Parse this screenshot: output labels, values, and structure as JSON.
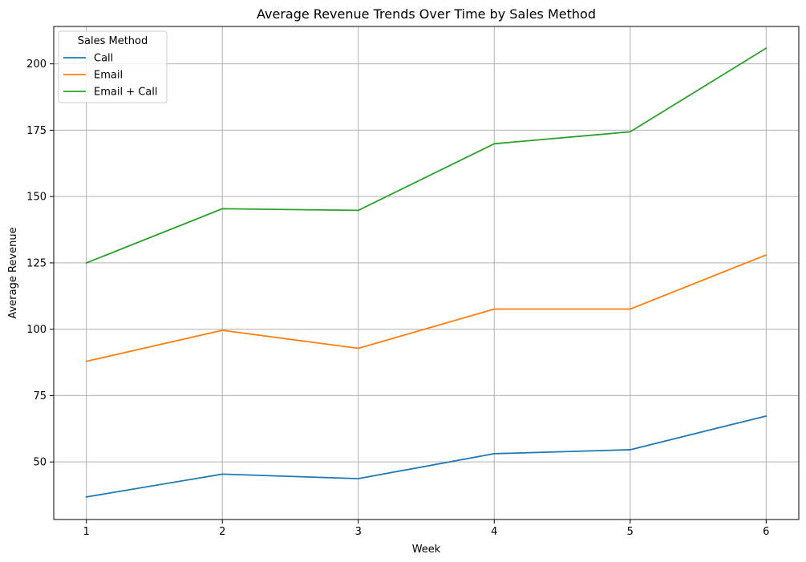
{
  "chart_data": {
    "type": "line",
    "title": "Average Revenue Trends Over Time by Sales Method",
    "xlabel": "Week",
    "ylabel": "Average Revenue",
    "x": [
      1,
      2,
      3,
      4,
      5,
      6
    ],
    "x_ticks": [
      "1",
      "2",
      "3",
      "4",
      "5",
      "6"
    ],
    "y_ticks": [
      50,
      75,
      100,
      125,
      150,
      175,
      200
    ],
    "xlim": [
      0.76,
      6.24
    ],
    "ylim": [
      28.3,
      214.1
    ],
    "grid": true,
    "legend": {
      "title": "Sales Method",
      "placement": "top-left"
    },
    "series": [
      {
        "name": "Call",
        "color": "#1f77b4",
        "values": [
          36.8,
          45.4,
          43.7,
          53.1,
          54.6,
          67.3
        ]
      },
      {
        "name": "Email",
        "color": "#ff7f0e",
        "values": [
          87.9,
          99.6,
          92.8,
          107.6,
          107.6,
          128.0
        ]
      },
      {
        "name": "Email + Call",
        "color": "#2ca02c",
        "values": [
          125.0,
          145.4,
          144.8,
          169.9,
          174.4,
          205.9
        ]
      }
    ]
  }
}
